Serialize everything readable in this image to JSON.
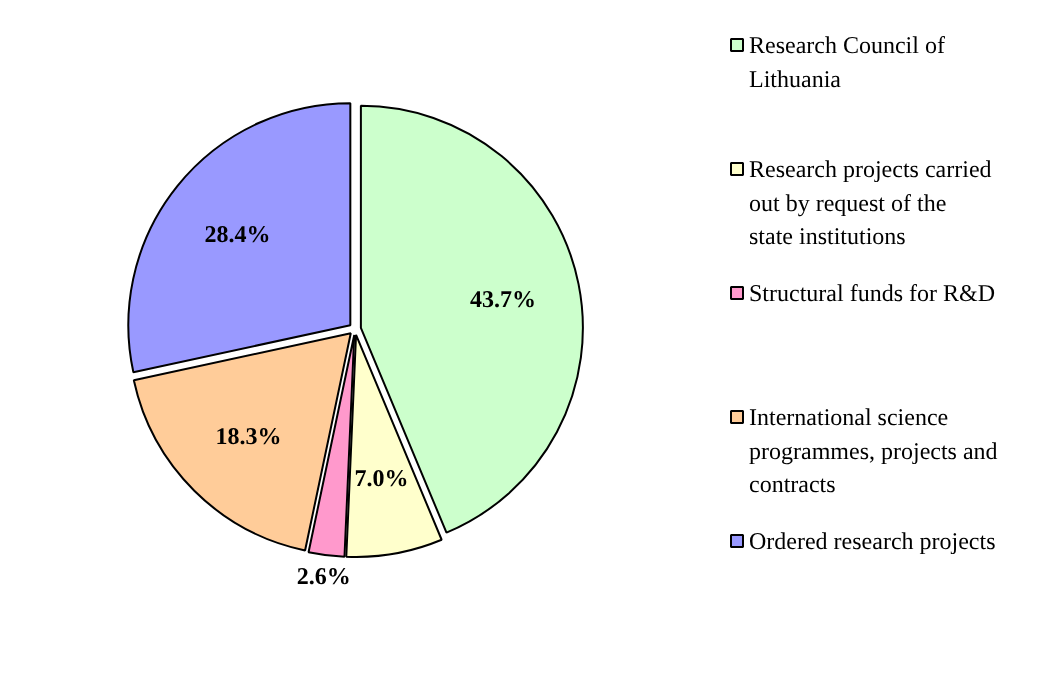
{
  "chart_data": {
    "type": "pie",
    "categories": [
      "Research Council of Lithuania",
      "Research projects carried out by request of the state institutions",
      "Structural funds for R&D",
      "International science programmes, projects and contracts",
      "Ordered research projects"
    ],
    "values": [
      43.7,
      7.0,
      2.6,
      18.3,
      28.4
    ],
    "colors": [
      "#ccffcc",
      "#ffffcc",
      "#ff99cc",
      "#ffcc99",
      "#9999ff"
    ],
    "value_labels": [
      "43.7%",
      "7.0%",
      "2.6%",
      "18.3%",
      "28.4%"
    ],
    "legend": "right"
  }
}
